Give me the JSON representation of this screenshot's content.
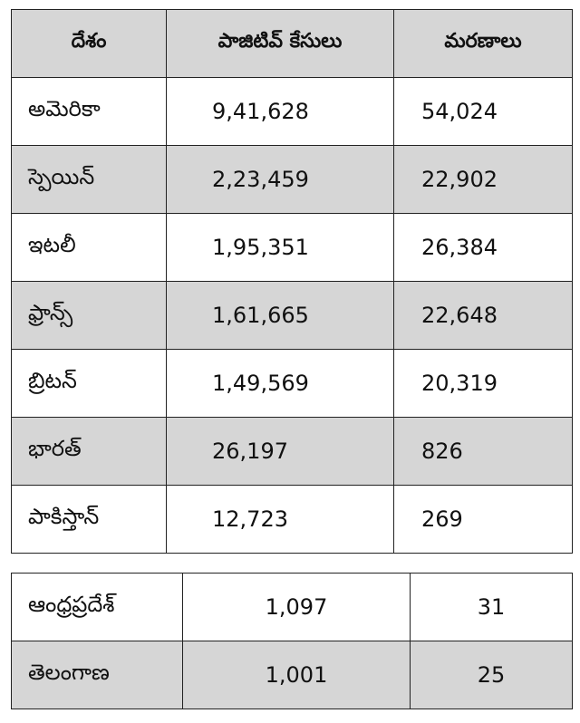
{
  "tables": [
    {
      "header": [
        "దేశం",
        "పాజిటివ్ కేసులు",
        "మరణాలు"
      ],
      "rows": [
        [
          "అమెరికా",
          "9,41,628",
          "54,024"
        ],
        [
          "స్పెయిన్",
          "2,23,459",
          "22,902"
        ],
        [
          "ఇటలీ",
          "1,95,351",
          "26,384"
        ],
        [
          "ఫ్రాన్స్",
          "1,61,665",
          "22,648"
        ],
        [
          "బ్రిటన్",
          "1,49,569",
          "20,319"
        ],
        [
          "భారత్",
          "26,197",
          "826"
        ],
        [
          "పాకిస్తాన్",
          "12,723",
          "269"
        ]
      ]
    },
    {
      "rows": [
        [
          "ఆంధ్రప్రదేశ్",
          "1,097",
          "31"
        ],
        [
          "తెలంగాణ",
          "1,001",
          "25"
        ]
      ]
    }
  ]
}
